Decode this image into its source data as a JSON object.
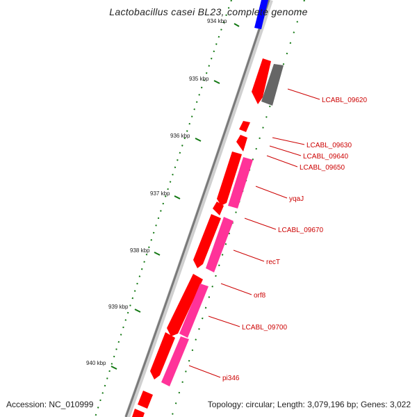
{
  "title": "Lactobacillus casei BL23, complete genome",
  "colors": {
    "backbone": "#7a7a7a",
    "forward_gene": "#ff0000",
    "reverse_gene": "#ff3399",
    "other_gene": "#666666",
    "highlight_gene": "#0000ff",
    "tick": "#117711",
    "label": "#cc0000"
  },
  "ticks": [
    {
      "label": "934 kbp"
    },
    {
      "label": "935 kbp"
    },
    {
      "label": "936 kbp"
    },
    {
      "label": "937 kbp"
    },
    {
      "label": "938 kbp"
    },
    {
      "label": "939 kbp"
    },
    {
      "label": "940 kbp"
    }
  ],
  "genes": [
    {
      "name": "LCABL_09620"
    },
    {
      "name": "LCABL_09630"
    },
    {
      "name": "LCABL_09640"
    },
    {
      "name": "LCABL_09650"
    },
    {
      "name": "yqaJ"
    },
    {
      "name": "LCABL_09670"
    },
    {
      "name": "recT"
    },
    {
      "name": "orf8"
    },
    {
      "name": "LCABL_09700"
    },
    {
      "name": "pi346"
    }
  ],
  "footer": {
    "accession": "Accession: NC_010999",
    "summary": "Topology: circular; Length: 3,079,196 bp; Genes: 3,022"
  }
}
